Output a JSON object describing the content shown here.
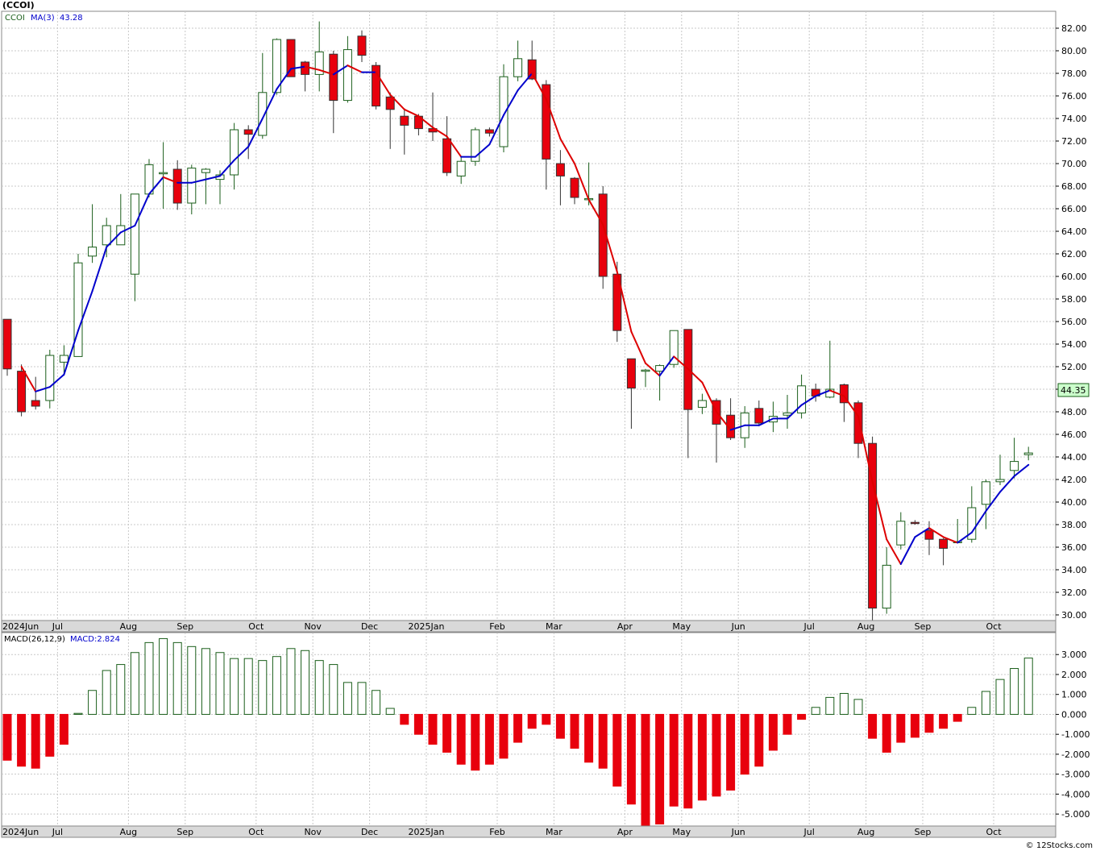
{
  "header": {
    "symbol": "(CCOI)",
    "legend_symbol": "CCOI",
    "ma_label": "MA(3)",
    "ma_value": "43.28",
    "last_price": "44.35"
  },
  "macd_header": {
    "label": "MACD(26,12,9)",
    "value_label": "MACD:2.824"
  },
  "watermark": "© 12Stocks.com",
  "colors": {
    "up": "#1a5e1a",
    "down": "#e8000d",
    "ma_up": "#0000cc",
    "ma_down": "#dd0000",
    "grid": "#c8c8c8",
    "axis_band": "#d9d9d9",
    "frame": "#888888",
    "price_tag_bg": "#ccffcc"
  },
  "chart_data": [
    {
      "type": "candlestick",
      "title": "(CCOI)",
      "period": "weekly",
      "ylim": [
        29.5,
        83.5
      ],
      "y_ticks": [
        "82.00",
        "80.00",
        "78.00",
        "76.00",
        "74.00",
        "72.00",
        "70.00",
        "68.00",
        "66.00",
        "64.00",
        "62.00",
        "60.00",
        "58.00",
        "56.00",
        "54.00",
        "52.00",
        "50.00",
        "48.00",
        "46.00",
        "44.00",
        "42.00",
        "40.00",
        "38.00",
        "36.00",
        "34.00",
        "32.00",
        "30.00"
      ],
      "month_labels": [
        {
          "label": "2024Jun",
          "index": 0
        },
        {
          "label": "Jul",
          "index": 4
        },
        {
          "label": "Aug",
          "index": 9
        },
        {
          "label": "Sep",
          "index": 13
        },
        {
          "label": "Oct",
          "index": 18
        },
        {
          "label": "Nov",
          "index": 22
        },
        {
          "label": "Dec",
          "index": 26
        },
        {
          "label": "2025Jan",
          "index": 30
        },
        {
          "label": "Feb",
          "index": 35
        },
        {
          "label": "Mar",
          "index": 39
        },
        {
          "label": "Apr",
          "index": 44
        },
        {
          "label": "May",
          "index": 48
        },
        {
          "label": "Jun",
          "index": 52
        },
        {
          "label": "Jul",
          "index": 57
        },
        {
          "label": "Aug",
          "index": 61
        },
        {
          "label": "Sep",
          "index": 65
        },
        {
          "label": "Oct",
          "index": 70
        }
      ],
      "candles": [
        {
          "o": 56.2,
          "h": 56.2,
          "l": 51.2,
          "c": 51.8
        },
        {
          "o": 51.6,
          "h": 52.2,
          "l": 47.6,
          "c": 48.0
        },
        {
          "o": 49.0,
          "h": 51.1,
          "l": 48.2,
          "c": 48.5
        },
        {
          "o": 49.0,
          "h": 53.5,
          "l": 48.3,
          "c": 53.0
        },
        {
          "o": 52.4,
          "h": 53.9,
          "l": 51.2,
          "c": 53.0
        },
        {
          "o": 52.9,
          "h": 62.0,
          "l": 52.9,
          "c": 61.2
        },
        {
          "o": 61.8,
          "h": 66.4,
          "l": 61.2,
          "c": 62.6
        },
        {
          "o": 62.8,
          "h": 65.2,
          "l": 61.7,
          "c": 64.5
        },
        {
          "o": 62.8,
          "h": 67.3,
          "l": 62.8,
          "c": 64.5
        },
        {
          "o": 60.2,
          "h": 67.3,
          "l": 57.8,
          "c": 67.3
        },
        {
          "o": 67.3,
          "h": 70.4,
          "l": 67.0,
          "c": 69.9
        },
        {
          "o": 69.2,
          "h": 71.9,
          "l": 66.0,
          "c": 69.2
        },
        {
          "o": 69.5,
          "h": 70.3,
          "l": 65.9,
          "c": 66.5
        },
        {
          "o": 66.5,
          "h": 69.9,
          "l": 65.5,
          "c": 69.6
        },
        {
          "o": 69.2,
          "h": 69.6,
          "l": 66.4,
          "c": 69.5
        },
        {
          "o": 68.6,
          "h": 69.4,
          "l": 66.4,
          "c": 69.0
        },
        {
          "o": 69.0,
          "h": 73.6,
          "l": 67.7,
          "c": 73.0
        },
        {
          "o": 73.0,
          "h": 73.4,
          "l": 70.4,
          "c": 72.6
        },
        {
          "o": 72.5,
          "h": 79.8,
          "l": 72.2,
          "c": 76.3
        },
        {
          "o": 76.3,
          "h": 81.1,
          "l": 76.1,
          "c": 81.0
        },
        {
          "o": 81.0,
          "h": 81.0,
          "l": 77.7,
          "c": 77.7
        },
        {
          "o": 79.0,
          "h": 79.1,
          "l": 76.4,
          "c": 77.9
        },
        {
          "o": 77.9,
          "h": 82.6,
          "l": 76.4,
          "c": 79.9
        },
        {
          "o": 79.7,
          "h": 80.0,
          "l": 72.7,
          "c": 75.6
        },
        {
          "o": 75.6,
          "h": 81.3,
          "l": 75.4,
          "c": 80.1
        },
        {
          "o": 81.3,
          "h": 81.8,
          "l": 79.0,
          "c": 79.6
        },
        {
          "o": 78.7,
          "h": 79.0,
          "l": 74.8,
          "c": 75.1
        },
        {
          "o": 75.9,
          "h": 76.3,
          "l": 71.3,
          "c": 74.8
        },
        {
          "o": 74.2,
          "h": 74.9,
          "l": 70.8,
          "c": 73.4
        },
        {
          "o": 74.2,
          "h": 74.4,
          "l": 72.5,
          "c": 73.1
        },
        {
          "o": 73.1,
          "h": 76.3,
          "l": 72.0,
          "c": 72.8
        },
        {
          "o": 72.2,
          "h": 74.2,
          "l": 68.9,
          "c": 69.2
        },
        {
          "o": 68.9,
          "h": 70.6,
          "l": 68.2,
          "c": 70.2
        },
        {
          "o": 70.2,
          "h": 73.2,
          "l": 69.8,
          "c": 73.0
        },
        {
          "o": 73.0,
          "h": 73.2,
          "l": 72.4,
          "c": 72.7
        },
        {
          "o": 71.5,
          "h": 78.8,
          "l": 71.0,
          "c": 77.7
        },
        {
          "o": 77.7,
          "h": 80.9,
          "l": 77.3,
          "c": 79.3
        },
        {
          "o": 79.2,
          "h": 80.9,
          "l": 77.4,
          "c": 77.5
        },
        {
          "o": 77.0,
          "h": 77.4,
          "l": 67.7,
          "c": 70.4
        },
        {
          "o": 70.0,
          "h": 71.2,
          "l": 66.3,
          "c": 68.9
        },
        {
          "o": 68.7,
          "h": 68.8,
          "l": 66.4,
          "c": 67.0
        },
        {
          "o": 66.9,
          "h": 70.1,
          "l": 66.3,
          "c": 66.9
        },
        {
          "o": 67.3,
          "h": 68.0,
          "l": 58.9,
          "c": 60.0
        },
        {
          "o": 60.2,
          "h": 61.3,
          "l": 54.2,
          "c": 55.2
        },
        {
          "o": 52.7,
          "h": 52.7,
          "l": 46.5,
          "c": 50.1
        },
        {
          "o": 51.7,
          "h": 51.8,
          "l": 50.2,
          "c": 51.7
        },
        {
          "o": 51.6,
          "h": 52.2,
          "l": 49.0,
          "c": 52.1
        },
        {
          "o": 52.2,
          "h": 55.2,
          "l": 51.9,
          "c": 55.2
        },
        {
          "o": 55.3,
          "h": 55.3,
          "l": 43.9,
          "c": 48.2
        },
        {
          "o": 48.4,
          "h": 49.6,
          "l": 47.8,
          "c": 49.0
        },
        {
          "o": 49.0,
          "h": 49.2,
          "l": 43.5,
          "c": 46.9
        },
        {
          "o": 47.7,
          "h": 49.2,
          "l": 45.5,
          "c": 45.7
        },
        {
          "o": 45.7,
          "h": 48.5,
          "l": 44.8,
          "c": 47.9
        },
        {
          "o": 48.3,
          "h": 49.0,
          "l": 46.8,
          "c": 47.0
        },
        {
          "o": 47.1,
          "h": 48.9,
          "l": 46.2,
          "c": 47.6
        },
        {
          "o": 47.7,
          "h": 49.5,
          "l": 46.5,
          "c": 47.9
        },
        {
          "o": 47.9,
          "h": 51.3,
          "l": 47.4,
          "c": 50.3
        },
        {
          "o": 50.0,
          "h": 50.5,
          "l": 48.9,
          "c": 49.4
        },
        {
          "o": 49.3,
          "h": 54.3,
          "l": 49.2,
          "c": 50.0
        },
        {
          "o": 50.4,
          "h": 50.5,
          "l": 47.1,
          "c": 48.8
        },
        {
          "o": 48.8,
          "h": 49.0,
          "l": 43.9,
          "c": 45.2
        },
        {
          "o": 45.2,
          "h": 45.8,
          "l": 29.5,
          "c": 30.6
        },
        {
          "o": 30.6,
          "h": 36.0,
          "l": 30.1,
          "c": 34.4
        },
        {
          "o": 36.2,
          "h": 39.1,
          "l": 35.8,
          "c": 38.3
        },
        {
          "o": 38.2,
          "h": 38.4,
          "l": 38.0,
          "c": 38.1
        },
        {
          "o": 37.5,
          "h": 38.3,
          "l": 35.3,
          "c": 36.7
        },
        {
          "o": 36.7,
          "h": 36.8,
          "l": 34.4,
          "c": 35.9
        },
        {
          "o": 36.5,
          "h": 38.5,
          "l": 36.4,
          "c": 36.5
        },
        {
          "o": 36.7,
          "h": 41.4,
          "l": 36.4,
          "c": 39.5
        },
        {
          "o": 39.8,
          "h": 42.0,
          "l": 37.6,
          "c": 41.8
        },
        {
          "o": 41.8,
          "h": 44.2,
          "l": 41.5,
          "c": 42.0
        },
        {
          "o": 42.8,
          "h": 45.7,
          "l": 42.1,
          "c": 43.6
        },
        {
          "o": 44.2,
          "h": 44.9,
          "l": 43.7,
          "c": 44.35
        }
      ],
      "ma": [
        null,
        52.0,
        49.8,
        50.2,
        51.3,
        55.2,
        58.7,
        62.6,
        63.9,
        64.5,
        67.3,
        68.8,
        68.3,
        68.3,
        68.6,
        68.9,
        70.3,
        71.5,
        74.0,
        76.6,
        78.4,
        78.6,
        78.3,
        77.9,
        78.7,
        78.1,
        78.1,
        76.1,
        74.8,
        74.2,
        73.2,
        72.4,
        70.6,
        70.6,
        71.7,
        74.3,
        76.5,
        78.0,
        75.7,
        72.2,
        70.0,
        66.8,
        64.6,
        60.4,
        55.1,
        52.3,
        51.2,
        52.9,
        51.8,
        50.6,
        48.0,
        46.4,
        46.8,
        46.8,
        47.4,
        47.4,
        48.6,
        49.4,
        49.9,
        49.4,
        47.6,
        41.8,
        36.7,
        34.5,
        36.9,
        37.7,
        36.9,
        36.4,
        37.3,
        39.2,
        40.9,
        42.3,
        43.3
      ]
    },
    {
      "type": "bar",
      "title": "MACD(26,12,9)",
      "ylim": [
        -5.6,
        4.1
      ],
      "y_ticks": [
        "3.000",
        "2.000",
        "1.000",
        "0.000",
        "-1.000",
        "-2.000",
        "-3.000",
        "-4.000",
        "-5.000"
      ],
      "values": [
        -2.3,
        -2.6,
        -2.7,
        -2.1,
        -1.5,
        0.05,
        1.2,
        2.2,
        2.5,
        3.1,
        3.6,
        3.8,
        3.6,
        3.4,
        3.3,
        3.1,
        2.8,
        2.8,
        2.7,
        2.9,
        3.3,
        3.2,
        2.7,
        2.5,
        1.6,
        1.6,
        1.2,
        0.3,
        -0.5,
        -1.0,
        -1.5,
        -1.9,
        -2.5,
        -2.8,
        -2.5,
        -2.2,
        -1.4,
        -0.7,
        -0.5,
        -1.2,
        -1.7,
        -2.4,
        -2.7,
        -3.6,
        -4.5,
        -5.7,
        -5.5,
        -4.6,
        -4.7,
        -4.3,
        -4.1,
        -3.8,
        -3.0,
        -2.6,
        -1.8,
        -1.0,
        -0.25,
        0.35,
        0.85,
        1.05,
        0.75,
        -1.2,
        -1.9,
        -1.4,
        -1.15,
        -0.9,
        -0.7,
        -0.35,
        0.35,
        1.15,
        1.75,
        2.3,
        2.824
      ]
    }
  ]
}
